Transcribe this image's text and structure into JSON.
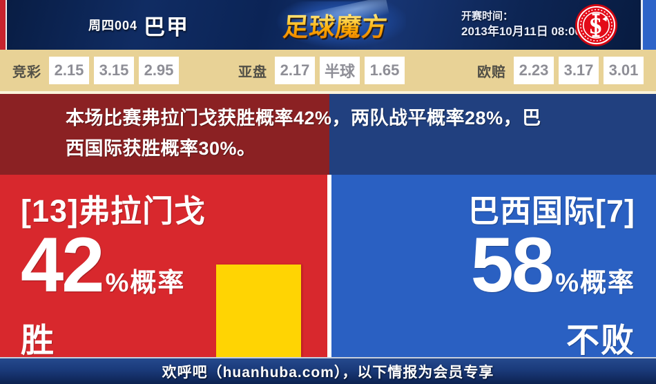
{
  "header": {
    "match_no": "周四004",
    "league": "巴甲",
    "site_logo": "足球魔方",
    "kickoff_label": "开赛时间：",
    "kickoff_time": "2013年10月11日 08:00",
    "badge_icon": "internacional-crest"
  },
  "odds": {
    "groups": [
      {
        "label": "竞彩",
        "values": [
          "2.15",
          "3.15",
          "2.95"
        ]
      },
      {
        "label": "亚盘",
        "values": [
          "2.17",
          "半球",
          "1.65"
        ]
      },
      {
        "label": "欧赔",
        "values": [
          "2.23",
          "3.17",
          "3.01"
        ]
      }
    ]
  },
  "summary": {
    "lines": [
      "本场比赛弗拉门戈获胜概率42%，两队战平概率28%，巴",
      "西国际获胜概率30%。"
    ],
    "full_text": "本场比赛弗拉门戈获胜概率42%，两队战平概率28%，巴西国际获胜概率30%。"
  },
  "panels": {
    "home": {
      "team": "[13]弗拉门戈",
      "value": "42",
      "unit": "%概率",
      "outcome": "胜"
    },
    "away": {
      "team": "巴西国际[7]",
      "value": "58",
      "unit": "%概率",
      "outcome": "不败"
    }
  },
  "footer": {
    "text": "欢呼吧（huanhuba.com），以下情报为会员专享"
  },
  "colors": {
    "home_red": "#d8282d",
    "away_blue": "#2a60c2",
    "summary_dark_red": "#8b2123",
    "summary_dark_blue": "#21407f",
    "bar_gold": "#ffd403",
    "odds_tan": "#e8d296",
    "header_navy": "#0d2554",
    "footer_navy": "#1a3a7a"
  },
  "chart_data": {
    "type": "bar",
    "categories": [
      "弗拉门戈 胜",
      "巴西国际 不败"
    ],
    "values": [
      42,
      58
    ],
    "series_label": "概率 (%)",
    "probabilities": {
      "home_win_pct": 42,
      "draw_pct": 28,
      "away_win_pct": 30
    },
    "ylim": [
      0,
      82
    ],
    "bar_color": "#ffd403"
  }
}
